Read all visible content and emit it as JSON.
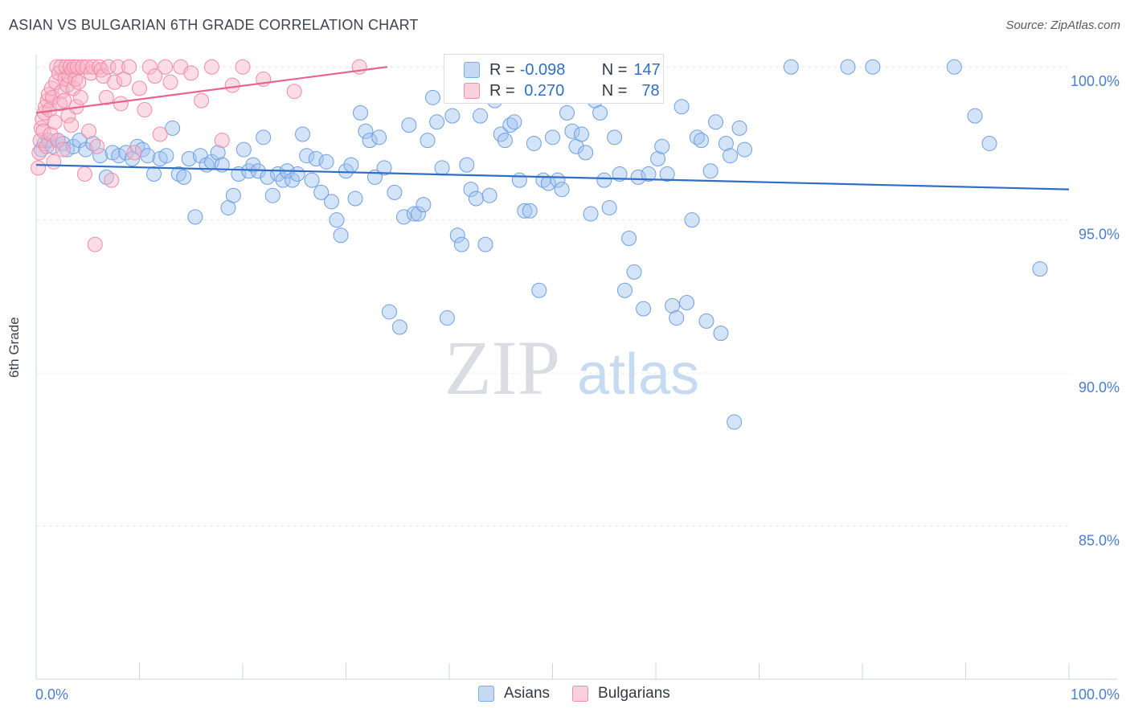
{
  "header": {
    "title": "ASIAN VS BULGARIAN 6TH GRADE CORRELATION CHART",
    "source": "Source: ZipAtlas.com"
  },
  "watermark": {
    "zip": "ZIP",
    "atlas": "atlas"
  },
  "legend": {
    "rows": [
      {
        "r_label": "R =",
        "r_value": "-0.098",
        "n_label": "N =",
        "n_value": "147",
        "color": "#7aaae8",
        "fill": "#c5d9f5"
      },
      {
        "r_label": "R =",
        "r_value": " 0.270",
        "n_label": "N =",
        "n_value": "78",
        "color": "#f08bab",
        "fill": "#fbd0dd"
      }
    ]
  },
  "bottom_legend": [
    "Asians",
    "Bulgarians"
  ],
  "chart_data": {
    "type": "scatter",
    "title": "ASIAN VS BULGARIAN 6TH GRADE CORRELATION CHART",
    "xlabel": "",
    "ylabel": "6th Grade",
    "xlim": [
      0,
      100
    ],
    "ylim": [
      80,
      100.4
    ],
    "x_tick_labels": [
      "0.0%",
      "100.0%"
    ],
    "y_ticks": [
      100,
      95,
      90,
      85
    ],
    "y_tick_labels": [
      "100.0%",
      "95.0%",
      "90.0%",
      "85.0%"
    ],
    "grid": true,
    "legend_position": "top-center",
    "series": [
      {
        "name": "Asians",
        "color": "#5b93dc",
        "trend": {
          "x": [
            0,
            100
          ],
          "y": [
            96.8,
            96.0
          ]
        },
        "points": [
          [
            0.5,
            97.3
          ],
          [
            0.8,
            97.5
          ],
          [
            1.2,
            97.6
          ],
          [
            1.6,
            97.4
          ],
          [
            2.1,
            97.6
          ],
          [
            2.6,
            97.5
          ],
          [
            3.0,
            97.3
          ],
          [
            3.6,
            97.4
          ],
          [
            4.2,
            97.6
          ],
          [
            4.8,
            97.3
          ],
          [
            5.5,
            97.5
          ],
          [
            6.2,
            97.1
          ],
          [
            6.8,
            96.4
          ],
          [
            7.4,
            97.2
          ],
          [
            8.0,
            97.1
          ],
          [
            8.7,
            97.2
          ],
          [
            9.3,
            97.0
          ],
          [
            9.8,
            97.4
          ],
          [
            10.3,
            97.3
          ],
          [
            10.8,
            97.1
          ],
          [
            11.4,
            96.5
          ],
          [
            12.0,
            97.0
          ],
          [
            12.6,
            97.1
          ],
          [
            13.2,
            98.0
          ],
          [
            13.8,
            96.5
          ],
          [
            14.3,
            96.4
          ],
          [
            14.8,
            97.0
          ],
          [
            15.4,
            95.1
          ],
          [
            15.9,
            97.1
          ],
          [
            16.5,
            96.8
          ],
          [
            17.0,
            96.9
          ],
          [
            17.6,
            97.2
          ],
          [
            18.0,
            96.8
          ],
          [
            18.6,
            95.4
          ],
          [
            19.1,
            95.8
          ],
          [
            19.6,
            96.5
          ],
          [
            20.1,
            97.3
          ],
          [
            20.6,
            96.6
          ],
          [
            21.0,
            96.8
          ],
          [
            21.5,
            96.6
          ],
          [
            22.0,
            97.7
          ],
          [
            22.4,
            96.4
          ],
          [
            22.9,
            95.8
          ],
          [
            23.4,
            96.5
          ],
          [
            23.9,
            96.3
          ],
          [
            24.3,
            96.6
          ],
          [
            24.8,
            96.3
          ],
          [
            25.3,
            96.5
          ],
          [
            25.8,
            97.8
          ],
          [
            26.2,
            97.1
          ],
          [
            26.7,
            96.3
          ],
          [
            27.1,
            97.0
          ],
          [
            27.6,
            95.9
          ],
          [
            28.1,
            96.9
          ],
          [
            28.6,
            95.6
          ],
          [
            29.1,
            95.0
          ],
          [
            29.5,
            94.5
          ],
          [
            30.0,
            96.6
          ],
          [
            30.5,
            96.8
          ],
          [
            30.9,
            95.7
          ],
          [
            31.4,
            98.5
          ],
          [
            31.9,
            97.9
          ],
          [
            32.3,
            97.6
          ],
          [
            32.8,
            96.4
          ],
          [
            33.2,
            97.7
          ],
          [
            33.7,
            96.7
          ],
          [
            34.2,
            92.0
          ],
          [
            34.7,
            95.9
          ],
          [
            35.2,
            91.5
          ],
          [
            35.6,
            95.1
          ],
          [
            36.1,
            98.1
          ],
          [
            36.6,
            95.2
          ],
          [
            37.0,
            95.2
          ],
          [
            37.5,
            95.5
          ],
          [
            37.9,
            97.6
          ],
          [
            38.4,
            99.0
          ],
          [
            38.8,
            98.2
          ],
          [
            39.3,
            96.7
          ],
          [
            39.8,
            91.8
          ],
          [
            40.3,
            98.4
          ],
          [
            40.8,
            94.5
          ],
          [
            41.2,
            94.2
          ],
          [
            41.7,
            96.8
          ],
          [
            42.1,
            96.0
          ],
          [
            42.6,
            95.7
          ],
          [
            43.0,
            98.4
          ],
          [
            43.5,
            94.2
          ],
          [
            43.9,
            95.8
          ],
          [
            44.4,
            98.9
          ],
          [
            45.0,
            97.8
          ],
          [
            45.4,
            97.6
          ],
          [
            45.9,
            98.1
          ],
          [
            46.3,
            98.2
          ],
          [
            46.8,
            96.3
          ],
          [
            47.3,
            95.3
          ],
          [
            47.8,
            95.3
          ],
          [
            48.2,
            97.5
          ],
          [
            48.7,
            92.7
          ],
          [
            49.1,
            96.3
          ],
          [
            49.6,
            96.2
          ],
          [
            50.0,
            97.7
          ],
          [
            50.5,
            96.3
          ],
          [
            50.9,
            96.0
          ],
          [
            51.4,
            98.5
          ],
          [
            51.9,
            97.9
          ],
          [
            52.3,
            97.4
          ],
          [
            52.8,
            97.8
          ],
          [
            53.2,
            97.2
          ],
          [
            53.7,
            95.2
          ],
          [
            54.1,
            98.9
          ],
          [
            54.6,
            98.5
          ],
          [
            55.0,
            96.3
          ],
          [
            55.5,
            95.4
          ],
          [
            56.0,
            97.7
          ],
          [
            56.5,
            96.5
          ],
          [
            57.0,
            92.7
          ],
          [
            57.4,
            94.4
          ],
          [
            57.9,
            93.3
          ],
          [
            58.3,
            96.4
          ],
          [
            58.8,
            92.1
          ],
          [
            59.3,
            96.5
          ],
          [
            59.7,
            99.2
          ],
          [
            60.2,
            97.0
          ],
          [
            60.6,
            97.4
          ],
          [
            61.1,
            96.5
          ],
          [
            61.6,
            92.2
          ],
          [
            62.0,
            91.8
          ],
          [
            62.5,
            98.7
          ],
          [
            63.0,
            92.3
          ],
          [
            63.5,
            95.0
          ],
          [
            64.0,
            97.7
          ],
          [
            64.4,
            97.6
          ],
          [
            64.9,
            91.7
          ],
          [
            65.3,
            96.6
          ],
          [
            65.8,
            98.2
          ],
          [
            66.3,
            91.3
          ],
          [
            66.8,
            97.5
          ],
          [
            67.2,
            97.1
          ],
          [
            67.6,
            88.4
          ],
          [
            68.1,
            98.0
          ],
          [
            68.6,
            97.3
          ],
          [
            73.1,
            100.0
          ],
          [
            78.6,
            100.0
          ],
          [
            81.0,
            100.0
          ],
          [
            88.9,
            100.0
          ],
          [
            90.9,
            98.4
          ],
          [
            92.3,
            97.5
          ],
          [
            97.2,
            93.4
          ]
        ]
      },
      {
        "name": "Bulgarians",
        "color": "#ee80a2",
        "trend": {
          "x": [
            0,
            34
          ],
          "y": [
            98.5,
            100.0
          ]
        },
        "points": [
          [
            0.2,
            96.7
          ],
          [
            0.3,
            97.2
          ],
          [
            0.4,
            97.6
          ],
          [
            0.5,
            98.0
          ],
          [
            0.6,
            98.3
          ],
          [
            0.7,
            97.9
          ],
          [
            0.8,
            98.5
          ],
          [
            0.9,
            98.7
          ],
          [
            1.0,
            97.4
          ],
          [
            1.1,
            98.9
          ],
          [
            1.2,
            99.1
          ],
          [
            1.3,
            98.6
          ],
          [
            1.4,
            97.8
          ],
          [
            1.5,
            99.3
          ],
          [
            1.6,
            99.0
          ],
          [
            1.7,
            96.9
          ],
          [
            1.8,
            98.2
          ],
          [
            1.9,
            99.5
          ],
          [
            2.0,
            100.0
          ],
          [
            2.1,
            97.6
          ],
          [
            2.2,
            99.8
          ],
          [
            2.3,
            98.8
          ],
          [
            2.4,
            100.0
          ],
          [
            2.5,
            99.2
          ],
          [
            2.6,
            97.3
          ],
          [
            2.7,
            98.9
          ],
          [
            2.8,
            99.6
          ],
          [
            2.9,
            100.0
          ],
          [
            3.0,
            99.4
          ],
          [
            3.1,
            98.4
          ],
          [
            3.2,
            99.7
          ],
          [
            3.3,
            100.0
          ],
          [
            3.4,
            98.1
          ],
          [
            3.5,
            99.9
          ],
          [
            3.6,
            99.3
          ],
          [
            3.7,
            100.0
          ],
          [
            3.8,
            99.6
          ],
          [
            3.9,
            98.7
          ],
          [
            4.0,
            100.0
          ],
          [
            4.1,
            99.5
          ],
          [
            4.3,
            99.0
          ],
          [
            4.5,
            100.0
          ],
          [
            4.7,
            96.5
          ],
          [
            4.9,
            100.0
          ],
          [
            5.1,
            97.9
          ],
          [
            5.3,
            99.8
          ],
          [
            5.5,
            100.0
          ],
          [
            5.7,
            94.2
          ],
          [
            5.9,
            97.4
          ],
          [
            6.1,
            100.0
          ],
          [
            6.3,
            99.9
          ],
          [
            6.5,
            99.7
          ],
          [
            6.8,
            99.0
          ],
          [
            7.0,
            100.0
          ],
          [
            7.3,
            96.3
          ],
          [
            7.6,
            99.5
          ],
          [
            7.9,
            100.0
          ],
          [
            8.2,
            98.8
          ],
          [
            8.5,
            99.6
          ],
          [
            9.0,
            100.0
          ],
          [
            9.5,
            97.2
          ],
          [
            10.0,
            99.3
          ],
          [
            10.5,
            98.6
          ],
          [
            11.0,
            100.0
          ],
          [
            11.5,
            99.7
          ],
          [
            12.0,
            97.8
          ],
          [
            12.5,
            100.0
          ],
          [
            13.0,
            99.5
          ],
          [
            14.0,
            100.0
          ],
          [
            15.0,
            99.8
          ],
          [
            16.0,
            98.9
          ],
          [
            17.0,
            100.0
          ],
          [
            18.0,
            97.6
          ],
          [
            19.0,
            99.4
          ],
          [
            20.0,
            100.0
          ],
          [
            22.0,
            99.6
          ],
          [
            25.0,
            99.2
          ],
          [
            31.3,
            100.0
          ]
        ]
      }
    ]
  }
}
